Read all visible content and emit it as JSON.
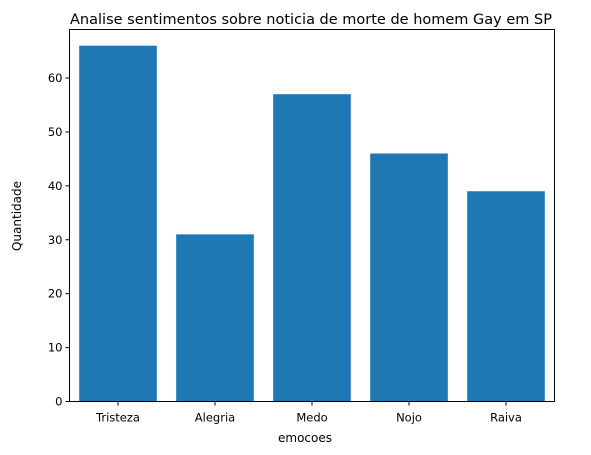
{
  "chart_data": {
    "type": "bar",
    "title": "Analise sentimentos sobre noticia de morte de homem Gay em SP",
    "xlabel": "emocoes",
    "ylabel": "Quantidade",
    "categories": [
      "Tristeza",
      "Alegria",
      "Medo",
      "Nojo",
      "Raiva"
    ],
    "values": [
      66,
      31,
      57,
      46,
      39
    ],
    "ylim": [
      0,
      69
    ],
    "yticks": [
      0,
      10,
      20,
      30,
      40,
      50,
      60
    ],
    "bar_color": "#1f77b4",
    "grid": false,
    "legend": "none"
  }
}
